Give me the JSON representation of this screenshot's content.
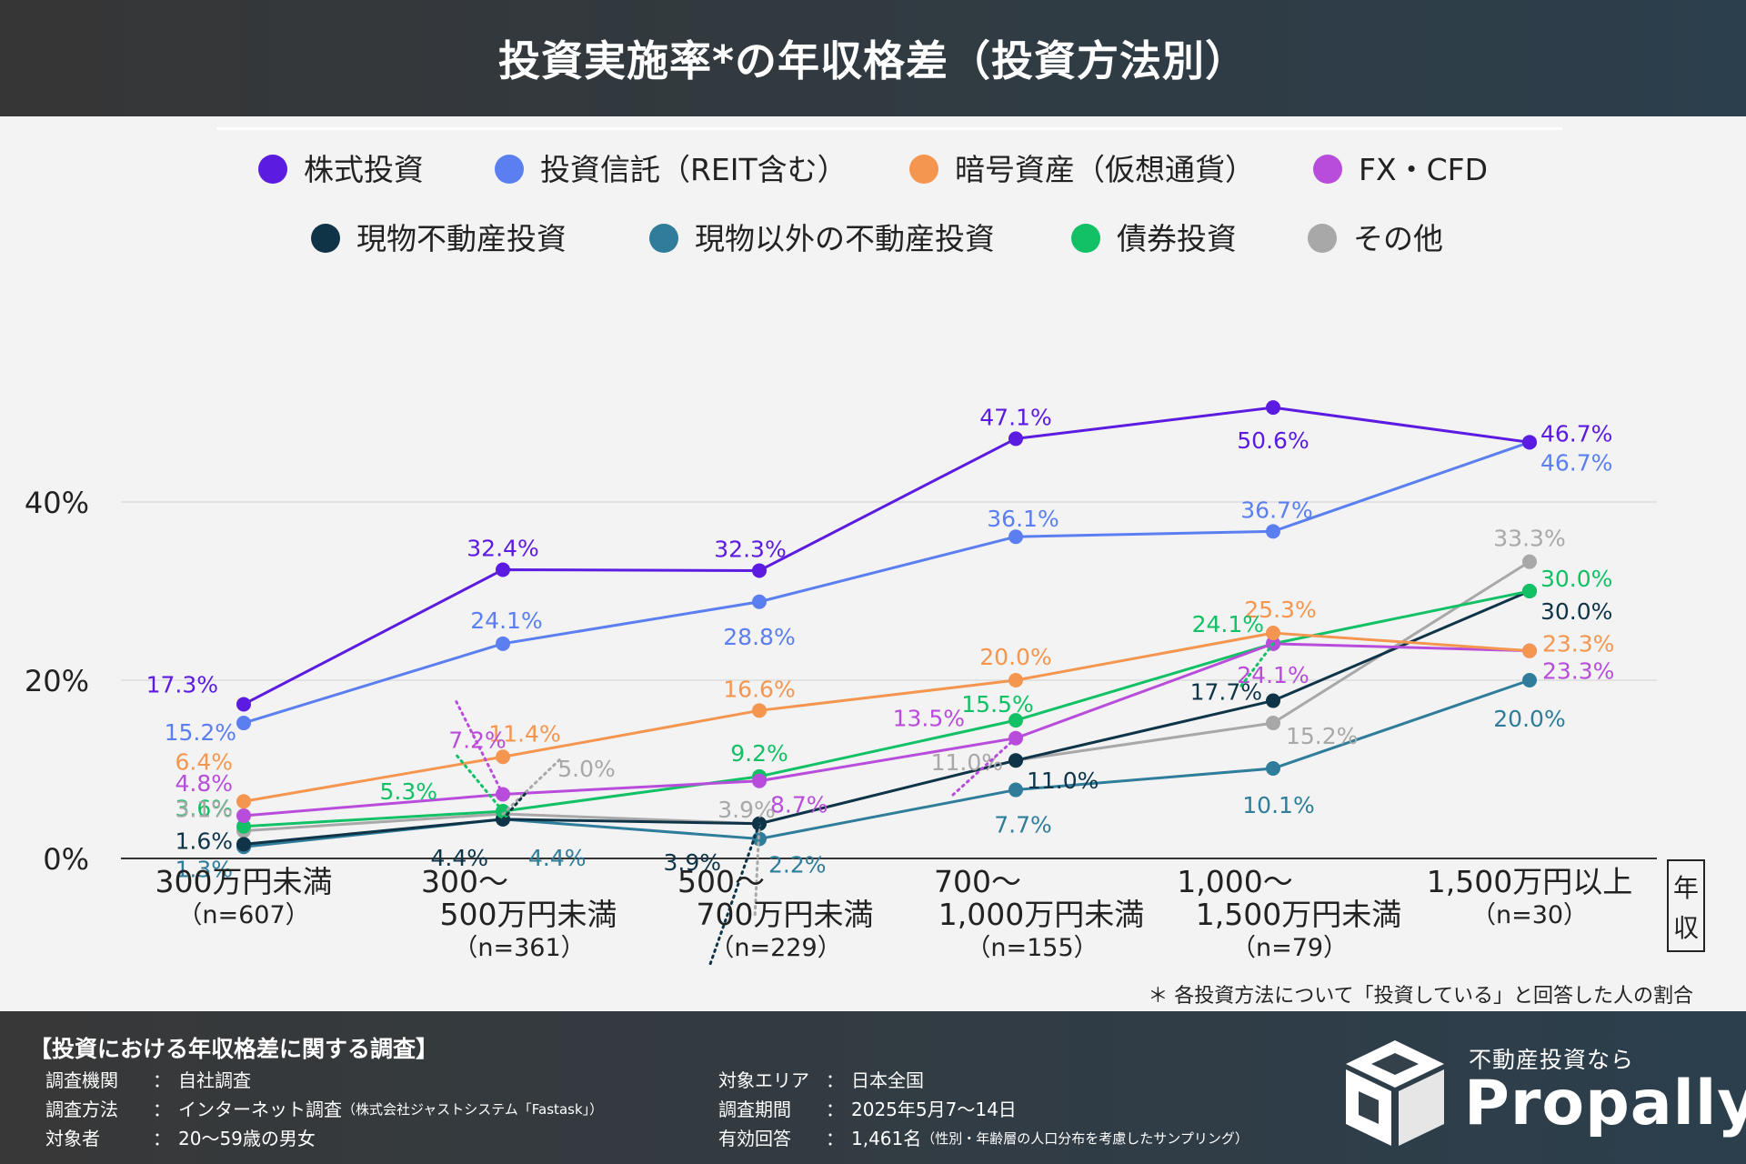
{
  "title": "投資実施率*の年収格差（投資方法別）",
  "footnote": "＊ 各投資方法について「投資している」と回答した人の割合",
  "axis_unit_label": [
    "年",
    "収"
  ],
  "chart_data": {
    "type": "line",
    "title": "投資実施率*の年収格差（投資方法別）",
    "xlabel": "年収",
    "ylabel": "",
    "ylim": [
      0,
      50
    ],
    "yticks": [
      0,
      20,
      40
    ],
    "ytick_labels": [
      "0%",
      "20%",
      "40%"
    ],
    "grid": true,
    "legend_position": "top",
    "categories": [
      {
        "label": [
          "300万円未満"
        ],
        "n": "（n=607）"
      },
      {
        "label": [
          "300～",
          "500万円未満"
        ],
        "n": "（n=361）"
      },
      {
        "label": [
          "500～",
          "700万円未満"
        ],
        "n": "（n=229）"
      },
      {
        "label": [
          "700～",
          "1,000万円未満"
        ],
        "n": "（n=155）"
      },
      {
        "label": [
          "1,000～",
          "1,500万円未満"
        ],
        "n": "（n=79）"
      },
      {
        "label": [
          "1,500万円以上"
        ],
        "n": "（n=30）"
      }
    ],
    "series": [
      {
        "name": "株式投資",
        "color": "#5b1be0",
        "values": [
          17.3,
          32.4,
          32.3,
          47.1,
          50.6,
          46.7
        ],
        "labels": [
          "17.3%",
          "32.4%",
          "32.3%",
          "47.1%",
          "50.6%",
          "46.7%"
        ]
      },
      {
        "name": "投資信託（REIT含む）",
        "color": "#5b7ff0",
        "values": [
          15.2,
          24.1,
          28.8,
          36.1,
          36.7,
          46.7
        ],
        "labels": [
          "15.2%",
          "24.1%",
          "28.8%",
          "36.1%",
          "36.7%",
          "46.7%"
        ]
      },
      {
        "name": "暗号資産（仮想通貨）",
        "color": "#f59650",
        "values": [
          6.4,
          11.4,
          16.6,
          20.0,
          25.3,
          23.3
        ],
        "labels": [
          "6.4%",
          "11.4%",
          "16.6%",
          "20.0%",
          "25.3%",
          "23.3%"
        ]
      },
      {
        "name": "FX・CFD",
        "color": "#b94ddb",
        "values": [
          4.8,
          7.2,
          8.7,
          13.5,
          24.1,
          23.3
        ],
        "labels": [
          "4.8%",
          "7.2%",
          "8.7%",
          "13.5%",
          "24.1%",
          "23.3%"
        ]
      },
      {
        "name": "現物不動産投資",
        "color": "#0f3448",
        "values": [
          1.6,
          4.4,
          3.9,
          11.0,
          17.7,
          30.0
        ],
        "labels": [
          "1.6%",
          "4.4%",
          "3.9%",
          "11.0%",
          "17.7%",
          "30.0%"
        ]
      },
      {
        "name": "現物以外の不動産投資",
        "color": "#2f7d9a",
        "values": [
          1.3,
          4.4,
          2.2,
          7.7,
          10.1,
          20.0
        ],
        "labels": [
          "1.3%",
          "4.4%",
          "2.2%",
          "7.7%",
          "10.1%",
          "20.0%"
        ]
      },
      {
        "name": "債券投資",
        "color": "#12c065",
        "values": [
          3.6,
          5.3,
          9.2,
          15.5,
          24.1,
          30.0
        ],
        "labels": [
          "3.6%",
          "5.3%",
          "9.2%",
          "15.5%",
          "24.1%",
          "30.0%"
        ]
      },
      {
        "name": "その他",
        "color": "#a8a8a8",
        "values": [
          3.1,
          5.0,
          3.9,
          11.0,
          15.2,
          33.3
        ],
        "labels": [
          "3.1%",
          "5.0%",
          "3.9%",
          "11.0%",
          "15.2%",
          "33.3%"
        ]
      }
    ]
  },
  "footer": {
    "survey_title": "【投資における年収格差に関する調査】",
    "left": [
      {
        "key": "調査機関",
        "value": "自社調査",
        "note": ""
      },
      {
        "key": "調査方法",
        "value": "インターネット調査",
        "note": "（株式会社ジャストシステム「Fastask」）"
      },
      {
        "key": "対象者",
        "value": "20～59歳の男女",
        "note": ""
      }
    ],
    "right": [
      {
        "key": "対象エリア",
        "value": "日本全国",
        "note": ""
      },
      {
        "key": "調査期間",
        "value": "2025年5月7～14日",
        "note": ""
      },
      {
        "key": "有効回答",
        "value": "1,461名",
        "note": "（性別・年齢層の人口分布を考慮したサンプリング）"
      }
    ],
    "brand_tagline": "不動産投資なら",
    "brand_name": "Propally"
  }
}
